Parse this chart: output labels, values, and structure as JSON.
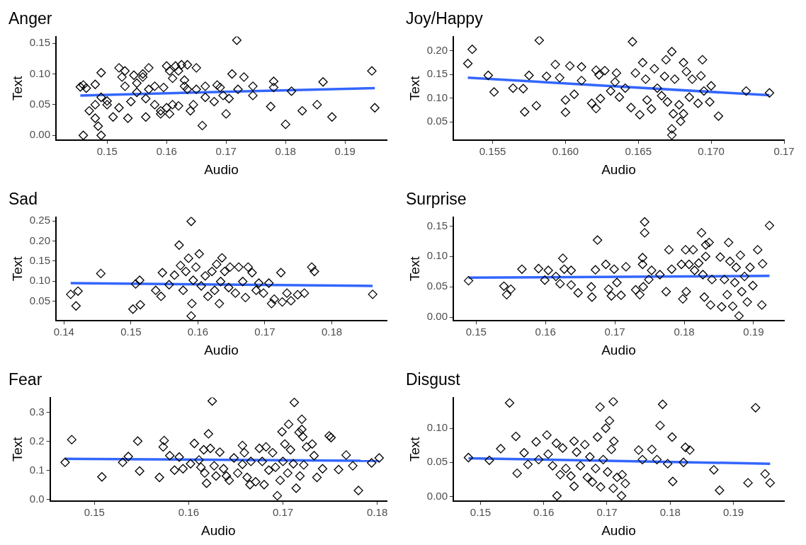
{
  "chart_data": [
    {
      "type": "scatter",
      "title": "Anger",
      "xlabel": "Audio",
      "ylabel": "Text",
      "marker": "diamond",
      "xlim": [
        0.1414,
        0.197
      ],
      "ylim": [
        -0.008,
        0.161
      ],
      "xticks": [
        {
          "value": 0.15,
          "label": "0.15"
        },
        {
          "value": 0.16,
          "label": "0.16"
        },
        {
          "value": 0.17,
          "label": "0.17"
        },
        {
          "value": 0.18,
          "label": "0.18"
        },
        {
          "value": 0.19,
          "label": "0.19"
        }
      ],
      "yticks": [
        {
          "value": 0,
          "label": "0.00"
        },
        {
          "value": 0.05,
          "label": "0.05"
        },
        {
          "value": 0.1,
          "label": "0.10"
        },
        {
          "value": 0.15,
          "label": "0.15"
        }
      ],
      "series": [
        {
          "type": "scatter",
          "color": "#000000",
          "x": [
            0.1455,
            0.146,
            0.1465,
            0.146,
            0.147,
            0.148,
            0.148,
            0.1485,
            0.149,
            0.149,
            0.148,
            0.149,
            0.15,
            0.15,
            0.151,
            0.152,
            0.1525,
            0.153,
            0.152,
            0.153,
            0.1535,
            0.154,
            0.1545,
            0.155,
            0.155,
            0.156,
            0.156,
            0.1565,
            0.157,
            0.1565,
            0.157,
            0.158,
            0.158,
            0.159,
            0.159,
            0.1595,
            0.16,
            0.1605,
            0.16,
            0.1605,
            0.161,
            0.161,
            0.1615,
            0.162,
            0.1625,
            0.162,
            0.163,
            0.163,
            0.1635,
            0.1635,
            0.164,
            0.1645,
            0.165,
            0.165,
            0.166,
            0.1665,
            0.1665,
            0.168,
            0.1685,
            0.169,
            0.1695,
            0.17,
            0.1705,
            0.171,
            0.1718,
            0.172,
            0.173,
            0.1745,
            0.1745,
            0.1775,
            0.178,
            0.178,
            0.18,
            0.181,
            0.1828,
            0.1853,
            0.1863,
            0.1878,
            0.1945,
            0.195
          ],
          "values": [
            0.079,
            0.082,
            0.077,
            0.0,
            0.04,
            0.083,
            0.028,
            0.015,
            0.0,
            0.102,
            0.05,
            0.062,
            0.056,
            0.05,
            0.03,
            0.11,
            0.095,
            0.105,
            0.045,
            0.08,
            0.028,
            0.055,
            0.098,
            0.07,
            0.085,
            0.1,
            0.095,
            0.03,
            0.11,
            0.06,
            0.075,
            0.08,
            0.05,
            0.04,
            0.035,
            0.078,
            0.113,
            0.105,
            0.045,
            0.035,
            0.05,
            0.093,
            0.113,
            0.105,
            0.115,
            0.048,
            0.08,
            0.09,
            0.115,
            0.075,
            0.04,
            0.05,
            0.11,
            0.075,
            0.016,
            0.062,
            0.08,
            0.055,
            0.082,
            0.078,
            0.065,
            0.035,
            0.06,
            0.1,
            0.155,
            0.075,
            0.095,
            0.08,
            0.065,
            0.047,
            0.088,
            0.078,
            0.018,
            0.072,
            0.04,
            0.05,
            0.087,
            0.03,
            0.105,
            0.045
          ]
        },
        {
          "type": "line",
          "marker": "none",
          "color": "#3366ff",
          "x": [
            0.1455,
            0.195
          ],
          "values": [
            0.065,
            0.077
          ]
        }
      ]
    },
    {
      "type": "scatter",
      "title": "Joy/Happy",
      "xlabel": "Audio",
      "ylabel": "Text",
      "marker": "diamond",
      "xlim": [
        0.1523,
        0.175
      ],
      "ylim": [
        0.011,
        0.23
      ],
      "xticks": [
        {
          "value": 0.155,
          "label": "0.155"
        },
        {
          "value": 0.16,
          "label": "0.160"
        },
        {
          "value": 0.165,
          "label": "0.165"
        },
        {
          "value": 0.17,
          "label": "0.170"
        },
        {
          "value": 0.175,
          "label": "0.17"
        }
      ],
      "yticks": [
        {
          "value": 0.05,
          "label": "0.05"
        },
        {
          "value": 0.1,
          "label": "0.10"
        },
        {
          "value": 0.15,
          "label": "0.15"
        },
        {
          "value": 0.2,
          "label": "0.20"
        }
      ],
      "series": [
        {
          "type": "scatter",
          "color": "#000000",
          "x": [
            0.1533,
            0.1536,
            0.1547,
            0.1551,
            0.1564,
            0.1571,
            0.1572,
            0.158,
            0.1582,
            0.1575,
            0.1587,
            0.1593,
            0.1596,
            0.16,
            0.16,
            0.1603,
            0.1606,
            0.1611,
            0.1611,
            0.1618,
            0.1621,
            0.1621,
            0.1623,
            0.1624,
            0.1627,
            0.1631,
            0.1634,
            0.1635,
            0.1637,
            0.1641,
            0.1645,
            0.1646,
            0.1648,
            0.1651,
            0.1653,
            0.1655,
            0.1656,
            0.1659,
            0.1661,
            0.1663,
            0.1666,
            0.1668,
            0.1669,
            0.167,
            0.1673,
            0.1673,
            0.1673,
            0.1674,
            0.1675,
            0.1678,
            0.1679,
            0.1681,
            0.1681,
            0.1683,
            0.1685,
            0.1687,
            0.1691,
            0.1693,
            0.1694,
            0.1695,
            0.1699,
            0.17,
            0.1705,
            0.1724,
            0.174
          ],
          "values": [
            0.173,
            0.203,
            0.148,
            0.113,
            0.121,
            0.12,
            0.071,
            0.084,
            0.222,
            0.148,
            0.146,
            0.171,
            0.143,
            0.07,
            0.096,
            0.168,
            0.108,
            0.166,
            0.137,
            0.089,
            0.078,
            0.159,
            0.149,
            0.099,
            0.158,
            0.115,
            0.134,
            0.153,
            0.102,
            0.121,
            0.08,
            0.219,
            0.153,
            0.065,
            0.175,
            0.14,
            0.096,
            0.077,
            0.162,
            0.121,
            0.105,
            0.146,
            0.181,
            0.092,
            0.198,
            0.035,
            0.022,
            0.067,
            0.14,
            0.086,
            0.051,
            0.175,
            0.067,
            0.156,
            0.102,
            0.14,
            0.089,
            0.147,
            0.181,
            0.115,
            0.092,
            0.126,
            0.062,
            0.115,
            0.111
          ]
        },
        {
          "type": "line",
          "marker": "none",
          "color": "#3366ff",
          "x": [
            0.1533,
            0.174
          ],
          "values": [
            0.143,
            0.106
          ]
        }
      ]
    },
    {
      "type": "scatter",
      "title": "Sad",
      "xlabel": "Audio",
      "ylabel": "Text",
      "marker": "diamond",
      "xlim": [
        0.1388,
        0.1882
      ],
      "ylim": [
        0.001,
        0.26
      ],
      "xticks": [
        {
          "value": 0.14,
          "label": "0.14"
        },
        {
          "value": 0.15,
          "label": "0.15"
        },
        {
          "value": 0.16,
          "label": "0.16"
        },
        {
          "value": 0.17,
          "label": "0.17"
        },
        {
          "value": 0.18,
          "label": "0.18"
        }
      ],
      "yticks": [
        {
          "value": 0.05,
          "label": "0.05"
        },
        {
          "value": 0.1,
          "label": "0.10"
        },
        {
          "value": 0.15,
          "label": "0.15"
        },
        {
          "value": 0.2,
          "label": "0.20"
        },
        {
          "value": 0.25,
          "label": "0.25"
        }
      ],
      "series": [
        {
          "type": "scatter",
          "color": "#000000",
          "x": [
            0.141,
            0.1418,
            0.1421,
            0.1455,
            0.1503,
            0.1507,
            0.1513,
            0.1514,
            0.1537,
            0.1545,
            0.1547,
            0.1557,
            0.1565,
            0.1572,
            0.1574,
            0.1578,
            0.1582,
            0.1586,
            0.159,
            0.159,
            0.1591,
            0.1593,
            0.1597,
            0.1602,
            0.1605,
            0.1611,
            0.1615,
            0.1621,
            0.1625,
            0.1628,
            0.1632,
            0.1634,
            0.1636,
            0.164,
            0.1646,
            0.1648,
            0.1656,
            0.1661,
            0.1667,
            0.1671,
            0.1675,
            0.1681,
            0.1687,
            0.1691,
            0.1698,
            0.1706,
            0.171,
            0.1714,
            0.1724,
            0.1726,
            0.1733,
            0.1739,
            0.1749,
            0.1759,
            0.177,
            0.1774,
            0.1861
          ],
          "values": [
            0.067,
            0.038,
            0.075,
            0.119,
            0.03,
            0.093,
            0.102,
            0.041,
            0.077,
            0.062,
            0.121,
            0.091,
            0.115,
            0.19,
            0.139,
            0.077,
            0.124,
            0.157,
            0.249,
            0.013,
            0.044,
            0.102,
            0.135,
            0.168,
            0.088,
            0.113,
            0.062,
            0.124,
            0.077,
            0.142,
            0.044,
            0.099,
            0.158,
            0.124,
            0.084,
            0.135,
            0.07,
            0.135,
            0.099,
            0.059,
            0.135,
            0.121,
            0.077,
            0.095,
            0.07,
            0.095,
            0.044,
            0.055,
            0.121,
            0.048,
            0.07,
            0.051,
            0.066,
            0.07,
            0.135,
            0.124,
            0.067
          ]
        },
        {
          "type": "line",
          "marker": "none",
          "color": "#3366ff",
          "x": [
            0.141,
            0.1861
          ],
          "values": [
            0.095,
            0.088
          ]
        }
      ]
    },
    {
      "type": "scatter",
      "title": "Surprise",
      "xlabel": "Audio",
      "ylabel": "Text",
      "marker": "diamond",
      "xlim": [
        0.1467,
        0.1944
      ],
      "ylim": [
        -0.006,
        0.165
      ],
      "xticks": [
        {
          "value": 0.15,
          "label": "0.15"
        },
        {
          "value": 0.16,
          "label": "0.16"
        },
        {
          "value": 0.17,
          "label": "0.17"
        },
        {
          "value": 0.18,
          "label": "0.18"
        },
        {
          "value": 0.19,
          "label": "0.19"
        }
      ],
      "yticks": [
        {
          "value": 0,
          "label": "0.00"
        },
        {
          "value": 0.05,
          "label": "0.05"
        },
        {
          "value": 0.1,
          "label": "0.10"
        },
        {
          "value": 0.15,
          "label": "0.15"
        }
      ],
      "series": [
        {
          "type": "scatter",
          "color": "#000000",
          "x": [
            0.1489,
            0.154,
            0.1544,
            0.155,
            0.1566,
            0.159,
            0.1599,
            0.1604,
            0.1615,
            0.1621,
            0.1625,
            0.1627,
            0.1637,
            0.1637,
            0.1647,
            0.1666,
            0.1667,
            0.1672,
            0.1675,
            0.1687,
            0.1691,
            0.1695,
            0.1699,
            0.1703,
            0.1709,
            0.1716,
            0.173,
            0.1736,
            0.174,
            0.174,
            0.1743,
            0.1743,
            0.1741,
            0.1749,
            0.1753,
            0.1765,
            0.1774,
            0.1778,
            0.1782,
            0.1796,
            0.1798,
            0.1802,
            0.1803,
            0.1807,
            0.1813,
            0.1815,
            0.1821,
            0.1825,
            0.1827,
            0.1829,
            0.1831,
            0.1831,
            0.1836,
            0.1838,
            0.184,
            0.1852,
            0.1854,
            0.1858,
            0.1862,
            0.1864,
            0.1866,
            0.187,
            0.1873,
            0.1875,
            0.1879,
            0.1881,
            0.1883,
            0.1887,
            0.1891,
            0.1895,
            0.1899,
            0.1906,
            0.1912,
            0.1913,
            0.1923
          ],
          "values": [
            0.06,
            0.051,
            0.037,
            0.046,
            0.079,
            0.08,
            0.061,
            0.077,
            0.067,
            0.055,
            0.097,
            0.079,
            0.077,
            0.053,
            0.04,
            0.05,
            0.033,
            0.078,
            0.127,
            0.087,
            0.046,
            0.035,
            0.079,
            0.057,
            0.036,
            0.083,
            0.045,
            0.037,
            0.098,
            0.087,
            0.139,
            0.157,
            0.05,
            0.062,
            0.077,
            0.07,
            0.042,
            0.111,
            0.079,
            0.087,
            0.03,
            0.111,
            0.042,
            0.087,
            0.111,
            0.077,
            0.089,
            0.139,
            0.07,
            0.033,
            0.1,
            0.119,
            0.123,
            0.02,
            0.062,
            0.099,
            0.017,
            0.062,
            0.037,
            0.123,
            0.092,
            0.018,
            0.057,
            0.082,
            0.002,
            0.102,
            0.042,
            0.067,
            0.025,
            0.082,
            0.052,
            0.111,
            0.02,
            0.088,
            0.151
          ]
        },
        {
          "type": "line",
          "marker": "none",
          "color": "#3366ff",
          "x": [
            0.1489,
            0.1923
          ],
          "values": [
            0.065,
            0.068
          ]
        }
      ]
    },
    {
      "type": "scatter",
      "title": "Fear",
      "xlabel": "Audio",
      "ylabel": "Text",
      "marker": "diamond",
      "xlim": [
        0.1453,
        0.181
      ],
      "ylim": [
        -0.006,
        0.351
      ],
      "xticks": [
        {
          "value": 0.15,
          "label": "0.15"
        },
        {
          "value": 0.16,
          "label": "0.16"
        },
        {
          "value": 0.17,
          "label": "0.17"
        },
        {
          "value": 0.18,
          "label": "0.18"
        }
      ],
      "yticks": [
        {
          "value": 0,
          "label": "0.0"
        },
        {
          "value": 0.1,
          "label": "0.1"
        },
        {
          "value": 0.2,
          "label": "0.2"
        },
        {
          "value": 0.3,
          "label": "0.3"
        }
      ],
      "series": [
        {
          "type": "scatter",
          "color": "#000000",
          "x": [
            0.1469,
            0.1476,
            0.1508,
            0.153,
            0.1536,
            0.1546,
            0.1548,
            0.1569,
            0.1574,
            0.1573,
            0.158,
            0.1585,
            0.159,
            0.1594,
            0.1602,
            0.1606,
            0.1611,
            0.1613,
            0.1616,
            0.1617,
            0.1619,
            0.1621,
            0.1623,
            0.1625,
            0.1627,
            0.1629,
            0.1633,
            0.1637,
            0.164,
            0.1643,
            0.1648,
            0.1652,
            0.1657,
            0.1657,
            0.1659,
            0.1662,
            0.1665,
            0.1666,
            0.1671,
            0.1675,
            0.1678,
            0.168,
            0.1682,
            0.1685,
            0.1689,
            0.1692,
            0.1694,
            0.1697,
            0.1699,
            0.17,
            0.1702,
            0.1705,
            0.1706,
            0.1708,
            0.1711,
            0.1712,
            0.1714,
            0.1717,
            0.1718,
            0.172,
            0.172,
            0.1721,
            0.1722,
            0.1725,
            0.1731,
            0.1733,
            0.1736,
            0.1742,
            0.1749,
            0.1751,
            0.1759,
            0.1767,
            0.1774,
            0.178,
            0.1794,
            0.1802
          ],
          "values": [
            0.128,
            0.206,
            0.078,
            0.128,
            0.148,
            0.201,
            0.098,
            0.076,
            0.203,
            0.181,
            0.151,
            0.101,
            0.146,
            0.106,
            0.123,
            0.193,
            0.136,
            0.111,
            0.171,
            0.091,
            0.056,
            0.226,
            0.176,
            0.339,
            0.116,
            0.081,
            0.163,
            0.106,
            0.081,
            0.066,
            0.143,
            0.091,
            0.186,
            0.121,
            0.161,
            0.076,
            0.051,
            0.131,
            0.061,
            0.176,
            0.131,
            0.051,
            0.181,
            0.101,
            0.161,
            0.111,
            0.013,
            0.066,
            0.233,
            0.131,
            0.191,
            0.091,
            0.259,
            0.171,
            0.123,
            0.334,
            0.039,
            0.231,
            0.081,
            0.276,
            0.241,
            0.216,
            0.119,
            0.181,
            0.191,
            0.151,
            0.076,
            0.106,
            0.219,
            0.213,
            0.103,
            0.153,
            0.116,
            0.031,
            0.126,
            0.143
          ]
        },
        {
          "type": "line",
          "marker": "none",
          "color": "#3366ff",
          "x": [
            0.1469,
            0.1802
          ],
          "values": [
            0.14,
            0.133
          ]
        }
      ]
    },
    {
      "type": "scatter",
      "title": "Disgust",
      "xlabel": "Audio",
      "ylabel": "Text",
      "marker": "diamond",
      "xlim": [
        0.1457,
        0.198
      ],
      "ylim": [
        -0.007,
        0.145
      ],
      "xticks": [
        {
          "value": 0.15,
          "label": "0.15"
        },
        {
          "value": 0.16,
          "label": "0.16"
        },
        {
          "value": 0.17,
          "label": "0.17"
        },
        {
          "value": 0.18,
          "label": "0.18"
        },
        {
          "value": 0.19,
          "label": "0.19"
        }
      ],
      "yticks": [
        {
          "value": 0,
          "label": "0.00"
        },
        {
          "value": 0.05,
          "label": "0.05"
        },
        {
          "value": 0.1,
          "label": "0.10"
        }
      ],
      "series": [
        {
          "type": "scatter",
          "color": "#000000",
          "x": [
            0.1481,
            0.1514,
            0.1532,
            0.1546,
            0.1556,
            0.1558,
            0.1569,
            0.1575,
            0.1588,
            0.1592,
            0.1605,
            0.1607,
            0.1614,
            0.162,
            0.1621,
            0.163,
            0.1626,
            0.1635,
            0.1643,
            0.1648,
            0.1648,
            0.1652,
            0.1658,
            0.1665,
            0.1669,
            0.1673,
            0.1677,
            0.1682,
            0.1685,
            0.1689,
            0.169,
            0.1694,
            0.1698,
            0.1701,
            0.1704,
            0.1707,
            0.171,
            0.171,
            0.1711,
            0.1716,
            0.1723,
            0.1724,
            0.1729,
            0.175,
            0.1756,
            0.1771,
            0.1779,
            0.1784,
            0.1788,
            0.1796,
            0.1803,
            0.1804,
            0.1821,
            0.1824,
            0.1831,
            0.1869,
            0.1878,
            0.1923,
            0.1935,
            0.195,
            0.1958
          ],
          "values": [
            0.057,
            0.053,
            0.07,
            0.137,
            0.088,
            0.034,
            0.064,
            0.047,
            0.08,
            0.054,
            0.09,
            0.062,
            0.045,
            0.078,
            0.001,
            0.071,
            0.032,
            0.041,
            0.03,
            0.081,
            0.015,
            0.065,
            0.045,
            0.076,
            0.028,
            0.058,
            0.021,
            0.041,
            0.087,
            0.131,
            0.014,
            0.054,
            0.1,
            0.036,
            0.111,
            0.069,
            0.139,
            0.012,
            0.081,
            0.028,
            0.001,
            0.032,
            0.019,
            0.068,
            0.054,
            0.069,
            0.054,
            0.104,
            0.135,
            0.048,
            0.087,
            0.022,
            0.05,
            0.072,
            0.068,
            0.039,
            0.009,
            0.02,
            0.13,
            0.033,
            0.02
          ]
        },
        {
          "type": "line",
          "marker": "none",
          "color": "#3366ff",
          "x": [
            0.1481,
            0.1958
          ],
          "values": [
            0.056,
            0.048
          ]
        }
      ]
    }
  ]
}
